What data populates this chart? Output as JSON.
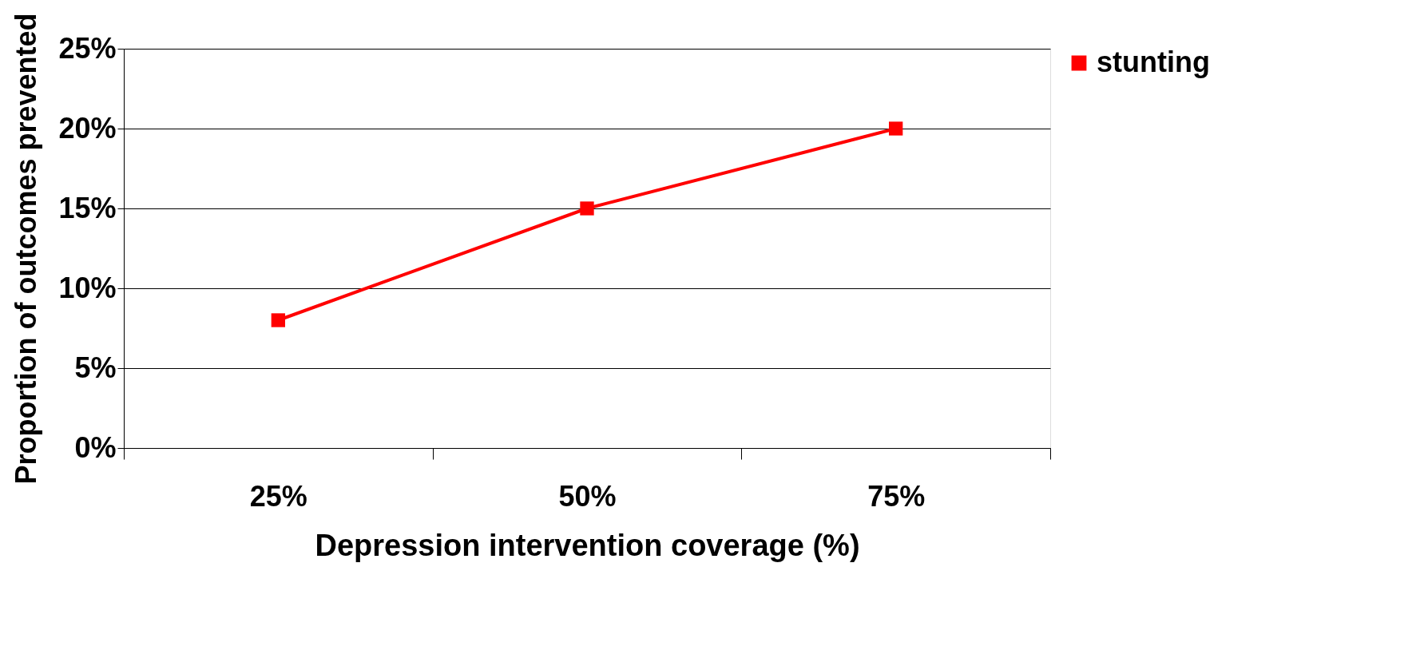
{
  "chart_data": {
    "type": "line",
    "xlabel": "Depression intervention coverage (%)",
    "ylabel": "Proportion of outcomes prevented",
    "categories": [
      "25%",
      "50%",
      "75%"
    ],
    "series": [
      {
        "name": "stunting",
        "color": "#ff0000",
        "values": [
          8,
          15,
          20
        ]
      }
    ],
    "ylim": [
      0,
      25
    ],
    "yticks": [
      {
        "value": 0,
        "label": "0%"
      },
      {
        "value": 5,
        "label": "5%"
      },
      {
        "value": 10,
        "label": "10%"
      },
      {
        "value": 15,
        "label": "15%"
      },
      {
        "value": 20,
        "label": "20%"
      },
      {
        "value": 25,
        "label": "25%"
      }
    ],
    "grid": "y",
    "legend": "right",
    "marker": "square",
    "line_style": "solid"
  }
}
